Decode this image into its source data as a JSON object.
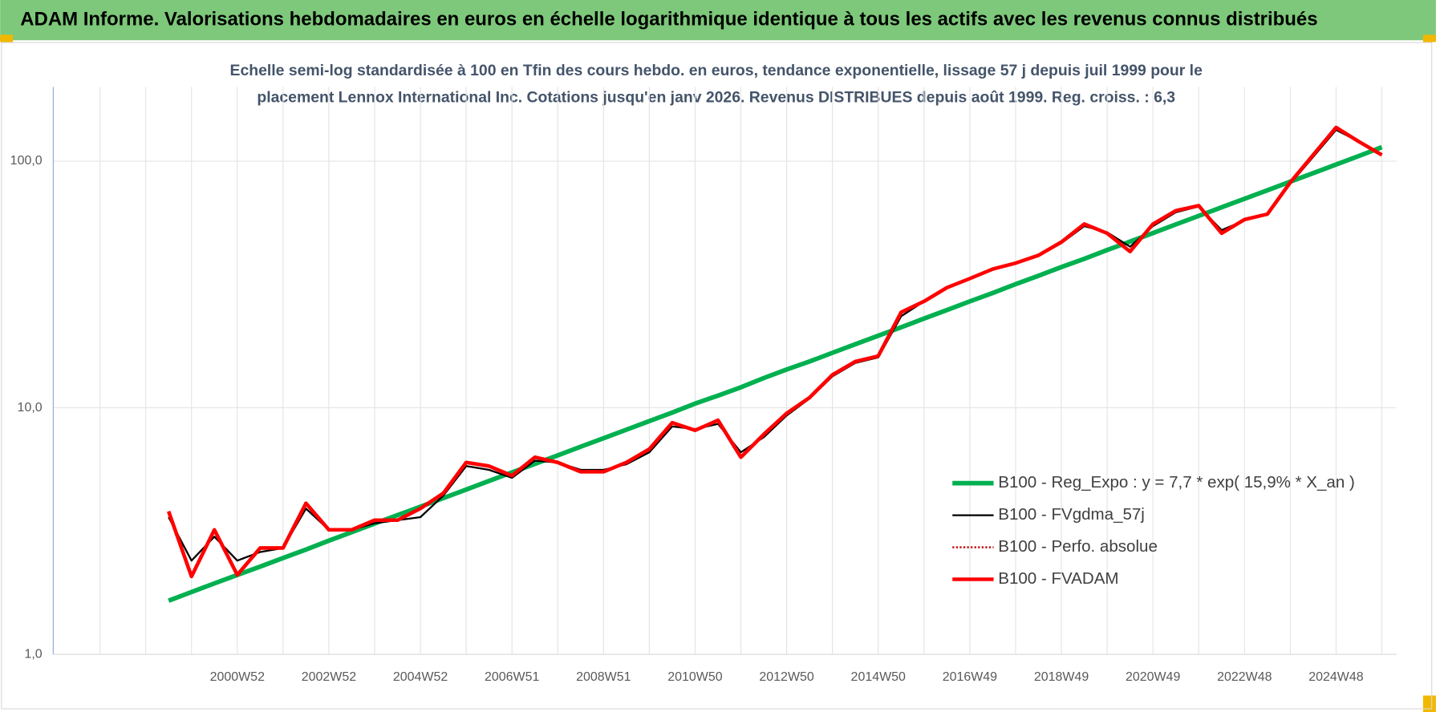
{
  "chart_data": {
    "type": "line",
    "title": "ADAM Informe. Valorisations hebdomadaires en euros en échelle logarithmique identique à tous les actifs avec les revenus connus distribués",
    "subtitle": [
      "Echelle semi-log standardisée à 100 en Tfin des cours hebdo. en euros, tendance exponentielle, lissage 57 j depuis juil 1999 pour le",
      "placement Lennox International Inc. Cotations jusqu'en janv 2026. Revenus DISTRIBUES depuis août 1999. Reg. croiss. : 6,3"
    ],
    "categories": [
      null,
      null,
      null,
      "2000W52",
      null,
      null,
      null,
      "2002W52",
      null,
      null,
      null,
      "2004W52",
      null,
      null,
      null,
      "2006W51",
      null,
      null,
      null,
      "2008W51",
      null,
      null,
      null,
      "2010W50",
      null,
      null,
      null,
      "2012W50",
      null,
      null,
      null,
      "2014W50",
      null,
      null,
      null,
      "2016W49",
      null,
      null,
      null,
      "2018W49",
      null,
      null,
      null,
      "2020W49",
      null,
      null,
      null,
      "2022W48",
      null,
      null,
      null,
      "2024W48",
      null,
      null
    ],
    "log_scale": true,
    "ylim": [
      1,
      200
    ],
    "yticks": [
      {
        "value": 1,
        "label": "1,0"
      },
      {
        "value": 10,
        "label": "10,0"
      },
      {
        "value": 100,
        "label": "100,0"
      }
    ],
    "grid": true,
    "legend": "right",
    "series": [
      {
        "name": "B100 - Reg_Expo : y = 7,7 * exp( 15,9% *  X_an )",
        "color": "#00b050",
        "style": "solid",
        "width": 5,
        "values": [
          1.65,
          1.79,
          1.94,
          2.1,
          2.27,
          2.46,
          2.66,
          2.89,
          3.13,
          3.39,
          3.67,
          3.97,
          4.3,
          4.66,
          5.05,
          5.47,
          5.92,
          6.41,
          6.95,
          7.52,
          8.15,
          8.83,
          9.56,
          10.4,
          11.2,
          12.1,
          13.2,
          14.3,
          15.4,
          16.7,
          18.1,
          19.6,
          21.2,
          23.0,
          24.9,
          27.0,
          29.2,
          31.7,
          34.3,
          37.2,
          40.2,
          43.6,
          47.2,
          51.1,
          55.4,
          60.0,
          65.0,
          70.4,
          76.2,
          82.6,
          89.4,
          96.9,
          105,
          114
        ]
      },
      {
        "name": "B100 - FVgdma_57j",
        "color": "#000000",
        "style": "solid",
        "width": 2,
        "values": [
          3.6,
          2.4,
          3.0,
          2.4,
          2.6,
          2.7,
          3.9,
          3.2,
          3.2,
          3.4,
          3.5,
          3.6,
          4.4,
          5.8,
          5.6,
          5.2,
          6.1,
          6.0,
          5.6,
          5.6,
          5.9,
          6.6,
          8.4,
          8.2,
          8.6,
          6.6,
          7.6,
          9.3,
          10.9,
          13.4,
          15.2,
          16.0,
          23.5,
          27,
          30.5,
          33.2,
          36.2,
          38.6,
          41.3,
          46.5,
          54.5,
          51.5,
          45,
          54.5,
          62,
          65.5,
          52.5,
          57.5,
          61,
          81,
          104,
          134,
          120,
          107
        ]
      },
      {
        "name": "B100 - Perfo. absolue",
        "color": "#c00000",
        "style": "dotted",
        "width": 2,
        "values": [
          3.8,
          2.07,
          3.2,
          2.1,
          2.7,
          2.7,
          4.1,
          3.2,
          3.2,
          3.5,
          3.5,
          3.9,
          4.5,
          6.0,
          5.8,
          5.3,
          6.3,
          6.0,
          5.5,
          5.5,
          6.0,
          6.8,
          8.7,
          8.1,
          8.9,
          6.3,
          7.8,
          9.5,
          11.0,
          13.6,
          15.4,
          16.2,
          24.4,
          27,
          30.7,
          33.4,
          36.5,
          38.6,
          41.5,
          47,
          55.6,
          51,
          43,
          55.6,
          63,
          66,
          51,
          58,
          61,
          82,
          106,
          137,
          120,
          106
        ]
      },
      {
        "name": "B100 - FVADAM",
        "color": "#ff0000",
        "style": "solid",
        "width": 4,
        "values": [
          3.8,
          2.07,
          3.2,
          2.1,
          2.7,
          2.7,
          4.1,
          3.2,
          3.2,
          3.5,
          3.5,
          3.9,
          4.5,
          6.0,
          5.8,
          5.3,
          6.3,
          6.0,
          5.5,
          5.5,
          6.0,
          6.8,
          8.7,
          8.1,
          8.9,
          6.3,
          7.8,
          9.5,
          11.0,
          13.6,
          15.4,
          16.2,
          24.4,
          27,
          30.7,
          33.4,
          36.5,
          38.6,
          41.5,
          47,
          55.6,
          51,
          43,
          55.6,
          63,
          66,
          51,
          58,
          61,
          82,
          106,
          137,
          120,
          106
        ]
      }
    ]
  }
}
